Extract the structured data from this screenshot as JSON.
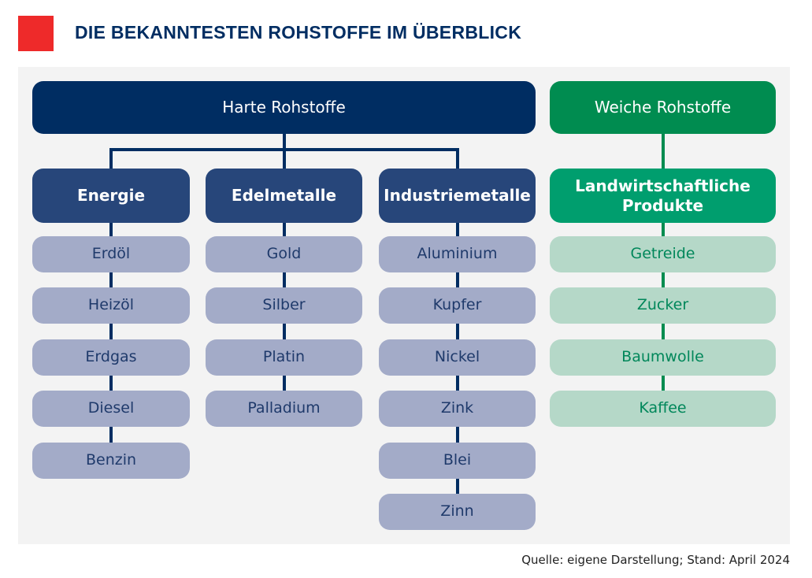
{
  "title": "DIE BEKANNTESTEN ROHSTOFFE IM ÜBERBLICK",
  "source": "Quelle: eigene Darstellung; Stand: April 2024",
  "colors": {
    "accent_red": "#ee2a2a",
    "hard_top": "#002d62",
    "hard_category": "#27467a",
    "hard_item_bg": "#a3abc8",
    "hard_item_text": "#1f3a6b",
    "soft_top": "#008c50",
    "soft_category": "#009e6e",
    "soft_item_bg": "#b5d8c8",
    "soft_item_text": "#00875a"
  },
  "groups": [
    {
      "label": "Harte Rohstoffe",
      "categories": [
        {
          "label": "Energie",
          "items": [
            "Erdöl",
            "Heizöl",
            "Erdgas",
            "Diesel",
            "Benzin"
          ]
        },
        {
          "label": "Edelmetalle",
          "items": [
            "Gold",
            "Silber",
            "Platin",
            "Palladium"
          ]
        },
        {
          "label": "Industriemetalle",
          "items": [
            "Aluminium",
            "Kupfer",
            "Nickel",
            "Zink",
            "Blei",
            "Zinn"
          ]
        }
      ]
    },
    {
      "label": "Weiche Rohstoffe",
      "categories": [
        {
          "label": "Landwirtschaftliche Produkte",
          "items": [
            "Getreide",
            "Zucker",
            "Baumwolle",
            "Kaffee"
          ]
        }
      ]
    }
  ]
}
